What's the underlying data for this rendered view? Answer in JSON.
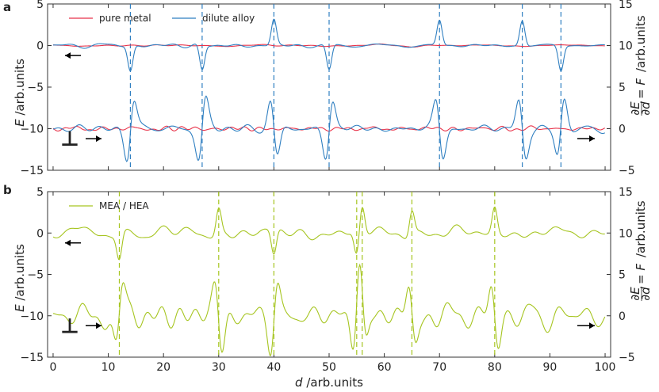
{
  "panels": [
    {
      "letter": "a"
    },
    {
      "letter": "b"
    }
  ],
  "xlabel": {
    "var": "d",
    "unit": "/arb.units"
  },
  "ylabel_left": {
    "var": "E",
    "unit": "/arb.units"
  },
  "ylabel_right": {
    "num": "∂E",
    "den": "∂d",
    "rest": "= F",
    "unit": "/arb.units"
  },
  "dislocation_symbol": "⊥",
  "colors": {
    "pure_metal": "#e8334a",
    "dilute_alloy": "#2f7fc1",
    "mea_hea": "#a6c520",
    "axis": "#333333",
    "arrow": "#000000"
  },
  "chart_data": [
    {
      "type": "line",
      "panel": "a",
      "xlim": [
        -1,
        101
      ],
      "ylim_left": [
        -15,
        5
      ],
      "ylim_right": [
        -5,
        15
      ],
      "xticks": [
        0,
        10,
        20,
        30,
        40,
        50,
        60,
        70,
        80,
        90,
        100
      ],
      "yticks_left": [
        -15,
        -10,
        -5,
        0,
        5
      ],
      "yticks_right": [
        -5,
        0,
        5,
        10,
        15
      ],
      "legend": {
        "placement": "top-left",
        "entries": [
          "pure metal",
          "dilute alloy"
        ]
      },
      "solute_positions": [
        14,
        27,
        40,
        50,
        70,
        85,
        92
      ],
      "solute_signs": [
        -1,
        -1,
        1,
        -1,
        1,
        1,
        -1
      ],
      "energy_peak_amplitude": 3.0,
      "force_peak_amplitude": 4.5,
      "series": [
        {
          "name": "pure metal",
          "quantity": "E",
          "axis": "left",
          "baseline": 0,
          "noise_amplitude": 0.15
        },
        {
          "name": "dilute alloy",
          "quantity": "E",
          "axis": "left",
          "baseline": 0,
          "noise_amplitude": 0.25
        },
        {
          "name": "pure metal",
          "quantity": "F",
          "axis": "right",
          "baseline": 0,
          "noise_amplitude": 0.3
        },
        {
          "name": "dilute alloy",
          "quantity": "F",
          "axis": "right",
          "baseline": 0,
          "noise_amplitude": 0.6
        }
      ],
      "grid": false
    },
    {
      "type": "line",
      "panel": "b",
      "xlim": [
        -1,
        101
      ],
      "ylim_left": [
        -15,
        5
      ],
      "ylim_right": [
        -5,
        15
      ],
      "xticks": [
        0,
        10,
        20,
        30,
        40,
        50,
        60,
        70,
        80,
        90,
        100
      ],
      "yticks_left": [
        -15,
        -10,
        -5,
        0,
        5
      ],
      "yticks_right": [
        -5,
        0,
        5,
        10,
        15
      ],
      "legend": {
        "placement": "top-left",
        "entries": [
          "MEA / HEA"
        ]
      },
      "solute_positions": [
        12,
        30,
        40,
        55,
        56,
        65,
        80
      ],
      "solute_signs": [
        -1,
        1,
        -1,
        -1,
        1,
        1,
        1
      ],
      "energy_peak_amplitude": 3.0,
      "force_peak_amplitude": 5.0,
      "series": [
        {
          "name": "MEA / HEA",
          "quantity": "E",
          "axis": "left",
          "baseline": 0,
          "noise_amplitude": 0.8
        },
        {
          "name": "MEA / HEA",
          "quantity": "F",
          "axis": "right",
          "baseline": 0,
          "noise_amplitude": 1.8
        }
      ],
      "grid": false
    }
  ]
}
